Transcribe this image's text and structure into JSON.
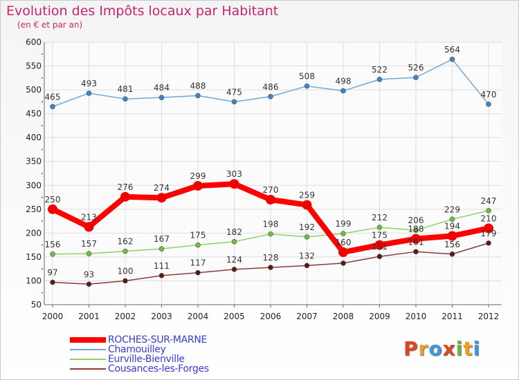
{
  "header": {
    "title": "Evolution des Impôts locaux par Habitant",
    "subtitle": "(en € et par an)"
  },
  "logo": {
    "text": "Proxiti",
    "letters": [
      {
        "char": "P",
        "color": "#e0451f"
      },
      {
        "char": "r",
        "color": "#f0a020"
      },
      {
        "char": "o",
        "color": "#3b9bd8"
      },
      {
        "char": "x",
        "color": "#e0451f"
      },
      {
        "char": "i",
        "color": "#6ab83a"
      },
      {
        "char": "t",
        "color": "#f0a020"
      },
      {
        "char": "i",
        "color": "#3b9bd8"
      }
    ]
  },
  "chart_data": {
    "type": "line",
    "title": "Evolution des Impôts locaux par Habitant",
    "subtitle": "(en € et par an)",
    "x": [
      "2000",
      "2001",
      "2002",
      "2003",
      "2004",
      "2005",
      "2006",
      "2007",
      "2008",
      "2009",
      "2010",
      "2011",
      "2012"
    ],
    "ylim": [
      50,
      600
    ],
    "yticks": [
      "50",
      "100",
      "150",
      "200",
      "250",
      "300",
      "350",
      "400",
      "450",
      "500",
      "550",
      "600"
    ],
    "grid": true,
    "legend_position": "bottom-left",
    "series": [
      {
        "name": "ROCHES-SUR-MARNE",
        "color": "#ff0000",
        "marker_color": "#ee0000",
        "values": [
          250,
          213,
          276,
          274,
          299,
          303,
          270,
          259,
          160,
          175,
          188,
          194,
          210
        ],
        "labels": [
          "250",
          "213",
          "276",
          "274",
          "299",
          "303",
          "270",
          "259",
          "160",
          "175",
          "188",
          "194",
          "210"
        ]
      },
      {
        "name": "Chamouilley",
        "color": "#6fa8d8",
        "marker_color": "#3d85c6",
        "values": [
          465,
          493,
          481,
          484,
          488,
          475,
          486,
          508,
          498,
          522,
          526,
          564,
          470
        ],
        "labels": [
          "465",
          "493",
          "481",
          "484",
          "488",
          "475",
          "486",
          "508",
          "498",
          "522",
          "526",
          "564",
          "470"
        ]
      },
      {
        "name": "Eurville-Bienville",
        "color": "#90d060",
        "marker_color": "#6cc040",
        "values": [
          156,
          157,
          162,
          167,
          175,
          182,
          198,
          192,
          199,
          212,
          206,
          229,
          247
        ],
        "labels": [
          "156",
          "157",
          "162",
          "167",
          "175",
          "182",
          "198",
          "192",
          "199",
          "212",
          "206",
          "229",
          "247"
        ]
      },
      {
        "name": "Cousances-les-Forges",
        "color": "#8b3a3a",
        "marker_color": "#5a1a1a",
        "values": [
          97,
          93,
          100,
          111,
          117,
          124,
          128,
          132,
          137,
          151,
          161,
          156,
          179
        ],
        "labels": [
          "97",
          "93",
          "100",
          "111",
          "117",
          "124",
          "128",
          "132",
          "",
          "151",
          "161",
          "156",
          "179"
        ]
      }
    ]
  }
}
